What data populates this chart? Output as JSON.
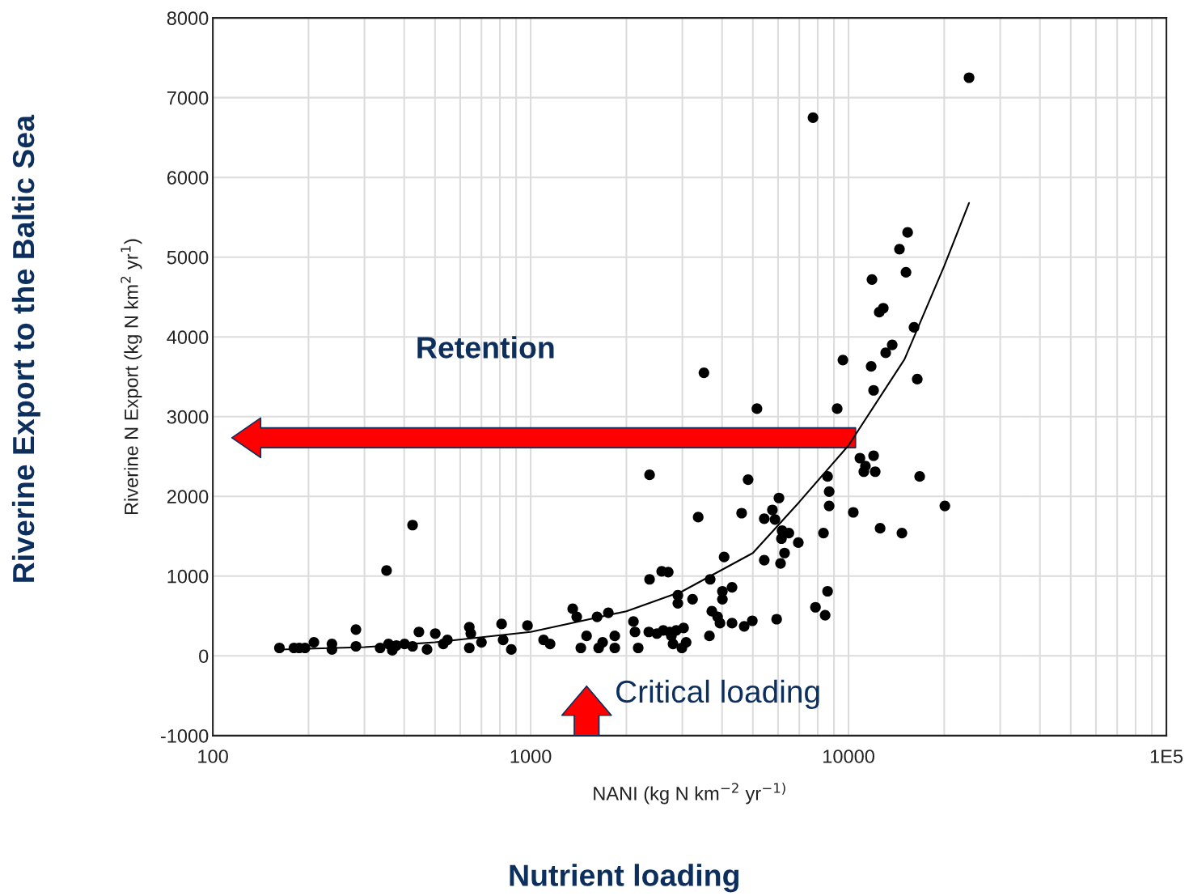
{
  "chart_data": {
    "type": "scatter",
    "xlabel": "NANI (kg N km$^{−2}$ yr$^{−1)}$",
    "ylabel": "Riverine N Export (kg N km$^{2}$ yr$^{1}$)",
    "xlim": [
      100,
      100000
    ],
    "ylim": [
      -1000,
      8000
    ],
    "xticks": [
      100,
      1000,
      10000,
      {
        "value": 100000,
        "label": "1E5"
      }
    ],
    "yticks": [
      -1000,
      0,
      1000,
      2000,
      3000,
      4000,
      5000,
      6000,
      7000,
      8000
    ],
    "log": "x",
    "grid": true,
    "legend": false,
    "series": [
      {
        "color": "#000000",
        "marker": "circle",
        "x": [
          162,
          180,
          187,
          195,
          208,
          237,
          237,
          282,
          282,
          336,
          357,
          367,
          378,
          401,
          425,
          445,
          472,
          501,
          531,
          547,
          641,
          648,
          641,
          700,
          810,
          819,
          869,
          977,
          1098,
          1151,
          1356,
          1396,
          1438,
          1499,
          1618,
          1636,
          1684,
          1755,
          1839,
          1839,
          2105,
          2129,
          2179,
          2353,
          2495,
          2613,
          2771,
          2870,
          3027,
          3083,
          2990,
          2804,
          2739,
          2366,
          2583,
          2709,
          2904,
          2904,
          3230,
          3670,
          3650,
          3715,
          3873,
          4010,
          4010,
          4300,
          3940,
          4300,
          4695,
          4980,
          4060,
          4610,
          4830,
          5150,
          5430,
          5940,
          6110,
          6290,
          6150,
          5870,
          5430,
          5760,
          6040,
          6180,
          6490,
          6950,
          7870,
          8440,
          8590,
          8340,
          8690,
          8690,
          8590,
          9210,
          9600,
          2366,
          3365,
          3508,
          7730,
          10350,
          10860,
          11170,
          11300,
          11990,
          12130,
          12570,
          14720,
          16740,
          20090,
          23940,
          11990,
          11780,
          11850,
          12490,
          12860,
          13090,
          13720,
          14460,
          15160,
          15340,
          16070,
          16450,
          425,
          352
        ],
        "values": [
          100,
          100,
          100,
          100,
          170,
          150,
          80,
          330,
          120,
          100,
          150,
          70,
          130,
          150,
          120,
          300,
          80,
          280,
          150,
          200,
          360,
          280,
          100,
          170,
          400,
          200,
          80,
          380,
          200,
          150,
          590,
          490,
          100,
          250,
          490,
          100,
          170,
          540,
          250,
          100,
          430,
          300,
          100,
          300,
          280,
          320,
          250,
          320,
          350,
          170,
          100,
          150,
          300,
          960,
          1060,
          1050,
          660,
          760,
          710,
          960,
          250,
          560,
          490,
          810,
          710,
          860,
          410,
          410,
          370,
          440,
          1240,
          1790,
          2210,
          3100,
          1200,
          460,
          1160,
          1290,
          1470,
          1710,
          1720,
          1830,
          1980,
          1570,
          1540,
          1420,
          610,
          510,
          810,
          1540,
          1880,
          2060,
          2250,
          3100,
          3710,
          2270,
          1740,
          3550,
          6750,
          1800,
          2480,
          2310,
          2380,
          2510,
          2310,
          1600,
          1540,
          2250,
          1880,
          7250,
          3330,
          3630,
          4720,
          4310,
          4360,
          3800,
          3900,
          5100,
          4810,
          5310,
          4120,
          3470,
          1640,
          1070
        ]
      },
      {
        "type": "line",
        "color": "#000000",
        "marker": "none",
        "x": [
          162,
          300,
          500,
          1000,
          2000,
          3000,
          5000,
          7000,
          10000,
          15000,
          20000,
          23940
        ],
        "values": [
          80,
          110,
          170,
          300,
          560,
          810,
          1290,
          1930,
          2640,
          3720,
          4890,
          5680
        ]
      }
    ],
    "annotations": [
      "Riverine Export to the Baltic Sea",
      "Nutrient loading",
      "Retention",
      "Critical loading"
    ]
  }
}
